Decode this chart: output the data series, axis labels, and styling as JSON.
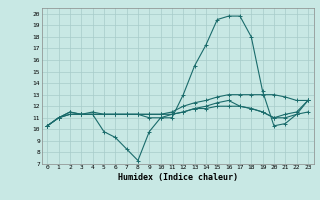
{
  "xlabel": "Humidex (Indice chaleur)",
  "xlim": [
    -0.5,
    23.5
  ],
  "ylim": [
    7,
    20.5
  ],
  "yticks": [
    7,
    8,
    9,
    10,
    11,
    12,
    13,
    14,
    15,
    16,
    17,
    18,
    19,
    20
  ],
  "xticks": [
    0,
    1,
    2,
    3,
    4,
    5,
    6,
    7,
    8,
    9,
    10,
    11,
    12,
    13,
    14,
    15,
    16,
    17,
    18,
    19,
    20,
    21,
    22,
    23
  ],
  "bg_color": "#c8e8e4",
  "grid_color": "#a8ccca",
  "line_color": "#1a6b6b",
  "line1": [
    10.3,
    11.0,
    11.5,
    11.3,
    11.3,
    9.8,
    9.3,
    8.3,
    7.3,
    9.8,
    11.0,
    11.0,
    13.0,
    15.5,
    17.3,
    19.5,
    19.8,
    19.8,
    18.0,
    13.3,
    10.3,
    10.5,
    11.3,
    12.5
  ],
  "line2": [
    10.3,
    11.0,
    11.5,
    11.3,
    11.5,
    11.3,
    11.3,
    11.3,
    11.3,
    11.3,
    11.3,
    11.5,
    12.0,
    12.3,
    12.5,
    12.8,
    13.0,
    13.0,
    13.0,
    13.0,
    13.0,
    12.8,
    12.5,
    12.5
  ],
  "line3": [
    10.3,
    11.0,
    11.3,
    11.3,
    11.3,
    11.3,
    11.3,
    11.3,
    11.3,
    11.0,
    11.0,
    11.3,
    11.5,
    11.8,
    12.0,
    12.3,
    12.5,
    12.0,
    11.8,
    11.5,
    11.0,
    11.3,
    11.5,
    12.5
  ],
  "line4": [
    10.3,
    11.0,
    11.3,
    11.3,
    11.3,
    11.3,
    11.3,
    11.3,
    11.3,
    11.3,
    11.3,
    11.3,
    11.5,
    11.8,
    11.8,
    12.0,
    12.0,
    12.0,
    11.8,
    11.5,
    11.0,
    11.0,
    11.3,
    11.5
  ]
}
